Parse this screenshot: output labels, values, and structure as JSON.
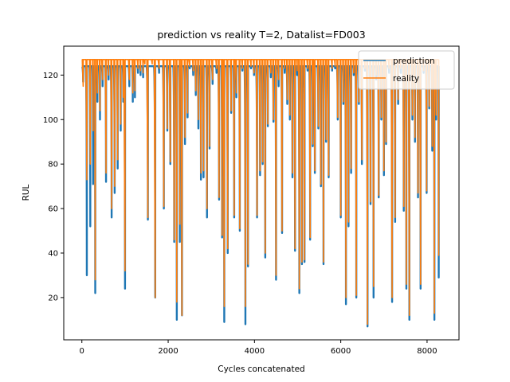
{
  "chart_data": {
    "type": "line",
    "title": "prediction vs reality T=2, Datalist=FD003",
    "xlabel": "Cycles concatenated",
    "ylabel": "RUL",
    "xlim": [
      -420,
      8740
    ],
    "ylim": [
      1,
      133
    ],
    "xticks": [
      0,
      2000,
      4000,
      6000,
      8000
    ],
    "yticks": [
      20,
      40,
      60,
      80,
      100,
      120
    ],
    "grid": false,
    "legend_position": "top-right",
    "series": [
      {
        "name": "prediction",
        "color": "#1f77b4",
        "cap": 124,
        "style": "smooth"
      },
      {
        "name": "reality",
        "color": "#ff7f0e",
        "cap": 127,
        "style": "linear"
      }
    ],
    "events": [
      [
        30,
        117,
        115
      ],
      [
        115,
        30,
        73
      ],
      [
        195,
        52,
        80
      ],
      [
        260,
        71,
        95
      ],
      [
        310,
        22,
        28
      ],
      [
        360,
        108,
        112
      ],
      [
        420,
        100,
        104
      ],
      [
        480,
        115,
        118
      ],
      [
        560,
        72,
        76
      ],
      [
        620,
        118,
        120
      ],
      [
        690,
        56,
        60
      ],
      [
        760,
        67,
        70
      ],
      [
        830,
        78,
        82
      ],
      [
        900,
        95,
        98
      ],
      [
        960,
        108,
        110
      ],
      [
        1000,
        24,
        32
      ],
      [
        1100,
        115,
        118
      ],
      [
        1180,
        108,
        112
      ],
      [
        1230,
        110,
        113
      ],
      [
        1300,
        121,
        123
      ],
      [
        1360,
        120,
        122
      ],
      [
        1420,
        119,
        121
      ],
      [
        1460,
        124,
        125
      ],
      [
        1530,
        55,
        56
      ],
      [
        1630,
        124,
        125
      ],
      [
        1700,
        20,
        20
      ],
      [
        1790,
        121,
        123
      ],
      [
        1900,
        60,
        61
      ],
      [
        1980,
        95,
        96
      ],
      [
        2050,
        80,
        81
      ],
      [
        2140,
        45,
        46
      ],
      [
        2200,
        10,
        18
      ],
      [
        2270,
        45,
        53
      ],
      [
        2320,
        12,
        12
      ],
      [
        2390,
        89,
        92
      ],
      [
        2450,
        101,
        103
      ],
      [
        2500,
        123,
        124
      ],
      [
        2580,
        120,
        122
      ],
      [
        2640,
        111,
        113
      ],
      [
        2700,
        96,
        100
      ],
      [
        2760,
        73,
        76
      ],
      [
        2820,
        74,
        77
      ],
      [
        2900,
        56,
        60
      ],
      [
        2960,
        87,
        88
      ],
      [
        3030,
        116,
        118
      ],
      [
        3120,
        121,
        123
      ],
      [
        3180,
        64,
        65
      ],
      [
        3250,
        47,
        48
      ],
      [
        3300,
        9,
        16
      ],
      [
        3380,
        40,
        42
      ],
      [
        3460,
        103,
        104
      ],
      [
        3530,
        56,
        57
      ],
      [
        3580,
        110,
        112
      ],
      [
        3660,
        50,
        51
      ],
      [
        3720,
        122,
        123
      ],
      [
        3790,
        8,
        16
      ],
      [
        3850,
        34,
        35
      ],
      [
        3920,
        123,
        124
      ],
      [
        3990,
        120,
        121
      ],
      [
        4060,
        56,
        57
      ],
      [
        4130,
        75,
        77
      ],
      [
        4190,
        80,
        81
      ],
      [
        4250,
        38,
        40
      ],
      [
        4310,
        97,
        98
      ],
      [
        4380,
        119,
        121
      ],
      [
        4440,
        99,
        100
      ],
      [
        4500,
        28,
        30
      ],
      [
        4560,
        115,
        118
      ],
      [
        4640,
        49,
        50
      ],
      [
        4700,
        121,
        123
      ],
      [
        4760,
        107,
        109
      ],
      [
        4820,
        100,
        102
      ],
      [
        4880,
        74,
        76
      ],
      [
        4940,
        41,
        42
      ],
      [
        4990,
        120,
        122
      ],
      [
        5040,
        22,
        24
      ],
      [
        5100,
        35,
        36
      ],
      [
        5160,
        36,
        37
      ],
      [
        5230,
        122,
        123
      ],
      [
        5290,
        46,
        47
      ],
      [
        5350,
        88,
        89
      ],
      [
        5400,
        76,
        77
      ],
      [
        5480,
        96,
        97
      ],
      [
        5540,
        70,
        71
      ],
      [
        5600,
        35,
        36
      ],
      [
        5660,
        90,
        91
      ],
      [
        5720,
        74,
        75
      ],
      [
        5800,
        122,
        123
      ],
      [
        5870,
        123,
        124
      ],
      [
        5930,
        100,
        101
      ],
      [
        6000,
        56,
        57
      ],
      [
        6060,
        107,
        108
      ],
      [
        6120,
        17,
        20
      ],
      [
        6180,
        52,
        54
      ],
      [
        6240,
        76,
        78
      ],
      [
        6300,
        120,
        121
      ],
      [
        6360,
        20,
        21
      ],
      [
        6420,
        107,
        108
      ],
      [
        6490,
        80,
        82
      ],
      [
        6560,
        122,
        123
      ],
      [
        6620,
        7,
        8
      ],
      [
        6690,
        62,
        63
      ],
      [
        6760,
        20,
        25
      ],
      [
        6820,
        118,
        120
      ],
      [
        6880,
        65,
        66
      ],
      [
        6940,
        100,
        101
      ],
      [
        7000,
        75,
        77
      ],
      [
        7050,
        89,
        90
      ],
      [
        7120,
        121,
        123
      ],
      [
        7190,
        18,
        20
      ],
      [
        7260,
        54,
        56
      ],
      [
        7330,
        107,
        109
      ],
      [
        7390,
        121,
        123
      ],
      [
        7460,
        59,
        61
      ],
      [
        7520,
        24,
        26
      ],
      [
        7590,
        10,
        12
      ],
      [
        7660,
        100,
        102
      ],
      [
        7720,
        90,
        92
      ],
      [
        7790,
        65,
        67
      ],
      [
        7850,
        24,
        26
      ],
      [
        7920,
        121,
        122
      ],
      [
        7990,
        67,
        68
      ],
      [
        8050,
        105,
        106
      ],
      [
        8120,
        86,
        88
      ],
      [
        8170,
        10,
        13
      ],
      [
        8210,
        100,
        102
      ],
      [
        8270,
        29,
        39
      ]
    ]
  }
}
